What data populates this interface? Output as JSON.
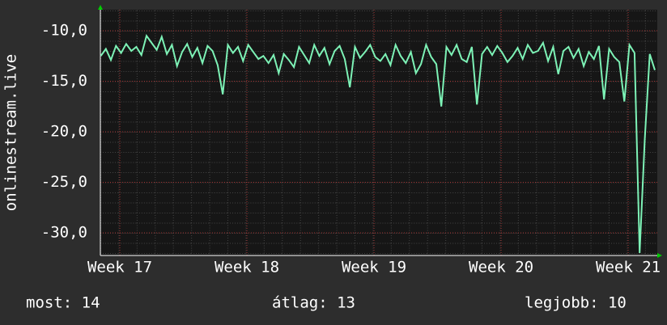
{
  "chart_data": {
    "type": "line",
    "y_label": "onlinestream.live",
    "x": [
      16.85,
      16.89,
      16.93,
      16.97,
      17.01,
      17.05,
      17.09,
      17.13,
      17.17,
      17.21,
      17.25,
      17.29,
      17.33,
      17.37,
      17.41,
      17.45,
      17.49,
      17.53,
      17.57,
      17.61,
      17.65,
      17.69,
      17.73,
      17.77,
      17.81,
      17.85,
      17.89,
      17.93,
      17.97,
      18.01,
      18.05,
      18.09,
      18.13,
      18.17,
      18.21,
      18.25,
      18.29,
      18.33,
      18.37,
      18.41,
      18.45,
      18.49,
      18.53,
      18.57,
      18.61,
      18.65,
      18.69,
      18.73,
      18.77,
      18.81,
      18.85,
      18.89,
      18.93,
      18.97,
      19.01,
      19.05,
      19.09,
      19.13,
      19.17,
      19.21,
      19.25,
      19.29,
      19.33,
      19.37,
      19.41,
      19.45,
      19.49,
      19.53,
      19.57,
      19.61,
      19.65,
      19.69,
      19.73,
      19.77,
      19.81,
      19.85,
      19.89,
      19.93,
      19.97,
      20.01,
      20.05,
      20.09,
      20.13,
      20.17,
      20.21,
      20.25,
      20.29,
      20.33,
      20.37,
      20.41,
      20.45,
      20.49,
      20.53,
      20.57,
      20.61,
      20.65,
      20.69,
      20.73,
      20.77,
      20.81,
      20.85,
      20.89,
      20.93,
      20.97,
      21.01,
      21.05,
      21.09,
      21.13,
      21.17,
      21.21
    ],
    "series": [
      {
        "name": "onlinestream.live",
        "color": "#7df2b6",
        "values": [
          -12.5,
          -11.8,
          -12.9,
          -11.5,
          -12.2,
          -11.3,
          -12.0,
          -11.6,
          -12.4,
          -10.5,
          -11.2,
          -11.9,
          -10.6,
          -12.3,
          -11.4,
          -13.5,
          -12.1,
          -11.3,
          -12.6,
          -11.7,
          -13.2,
          -11.5,
          -12.0,
          -13.4,
          -16.3,
          -11.4,
          -12.2,
          -11.6,
          -13.0,
          -11.4,
          -12.1,
          -12.8,
          -12.5,
          -13.2,
          -12.4,
          -14.2,
          -12.3,
          -12.9,
          -13.6,
          -11.6,
          -12.4,
          -13.2,
          -11.4,
          -12.5,
          -11.7,
          -13.3,
          -12.0,
          -11.5,
          -12.8,
          -15.6,
          -11.6,
          -12.7,
          -12.1,
          -11.4,
          -12.6,
          -13.0,
          -12.3,
          -13.4,
          -11.4,
          -12.5,
          -13.2,
          -12.1,
          -14.2,
          -13.3,
          -11.4,
          -12.6,
          -13.3,
          -17.5,
          -11.6,
          -12.4,
          -11.4,
          -12.8,
          -13.1,
          -11.6,
          -17.3,
          -12.3,
          -11.6,
          -12.4,
          -11.5,
          -12.2,
          -13.1,
          -12.5,
          -11.7,
          -12.8,
          -11.4,
          -12.2,
          -12.0,
          -11.2,
          -13.0,
          -11.6,
          -14.3,
          -12.0,
          -11.6,
          -12.7,
          -11.8,
          -13.5,
          -12.1,
          -12.8,
          -11.5,
          -16.8,
          -11.8,
          -12.6,
          -13.1,
          -17.0,
          -11.4,
          -12.2,
          -32.0,
          -20.8,
          -12.3,
          -13.9
        ]
      }
    ],
    "xlim": [
      16.847,
      21.229
    ],
    "ylim": [
      -32.24,
      -7.92
    ],
    "xticks": [
      {
        "value": 17,
        "label": "Week 17"
      },
      {
        "value": 18,
        "label": "Week 18"
      },
      {
        "value": 19,
        "label": "Week 19"
      },
      {
        "value": 20,
        "label": "Week 20"
      },
      {
        "value": 21,
        "label": "Week 21"
      }
    ],
    "yticks": [
      {
        "value": -10,
        "label": "-10,0"
      },
      {
        "value": -15,
        "label": "-15,0"
      },
      {
        "value": -20,
        "label": "-20,0"
      },
      {
        "value": -25,
        "label": "-25,0"
      },
      {
        "value": -30,
        "label": "-30,0"
      }
    ],
    "grid": true
  },
  "footer": [
    "most: 14",
    "átlag: 13",
    "legjobb: 10"
  ]
}
